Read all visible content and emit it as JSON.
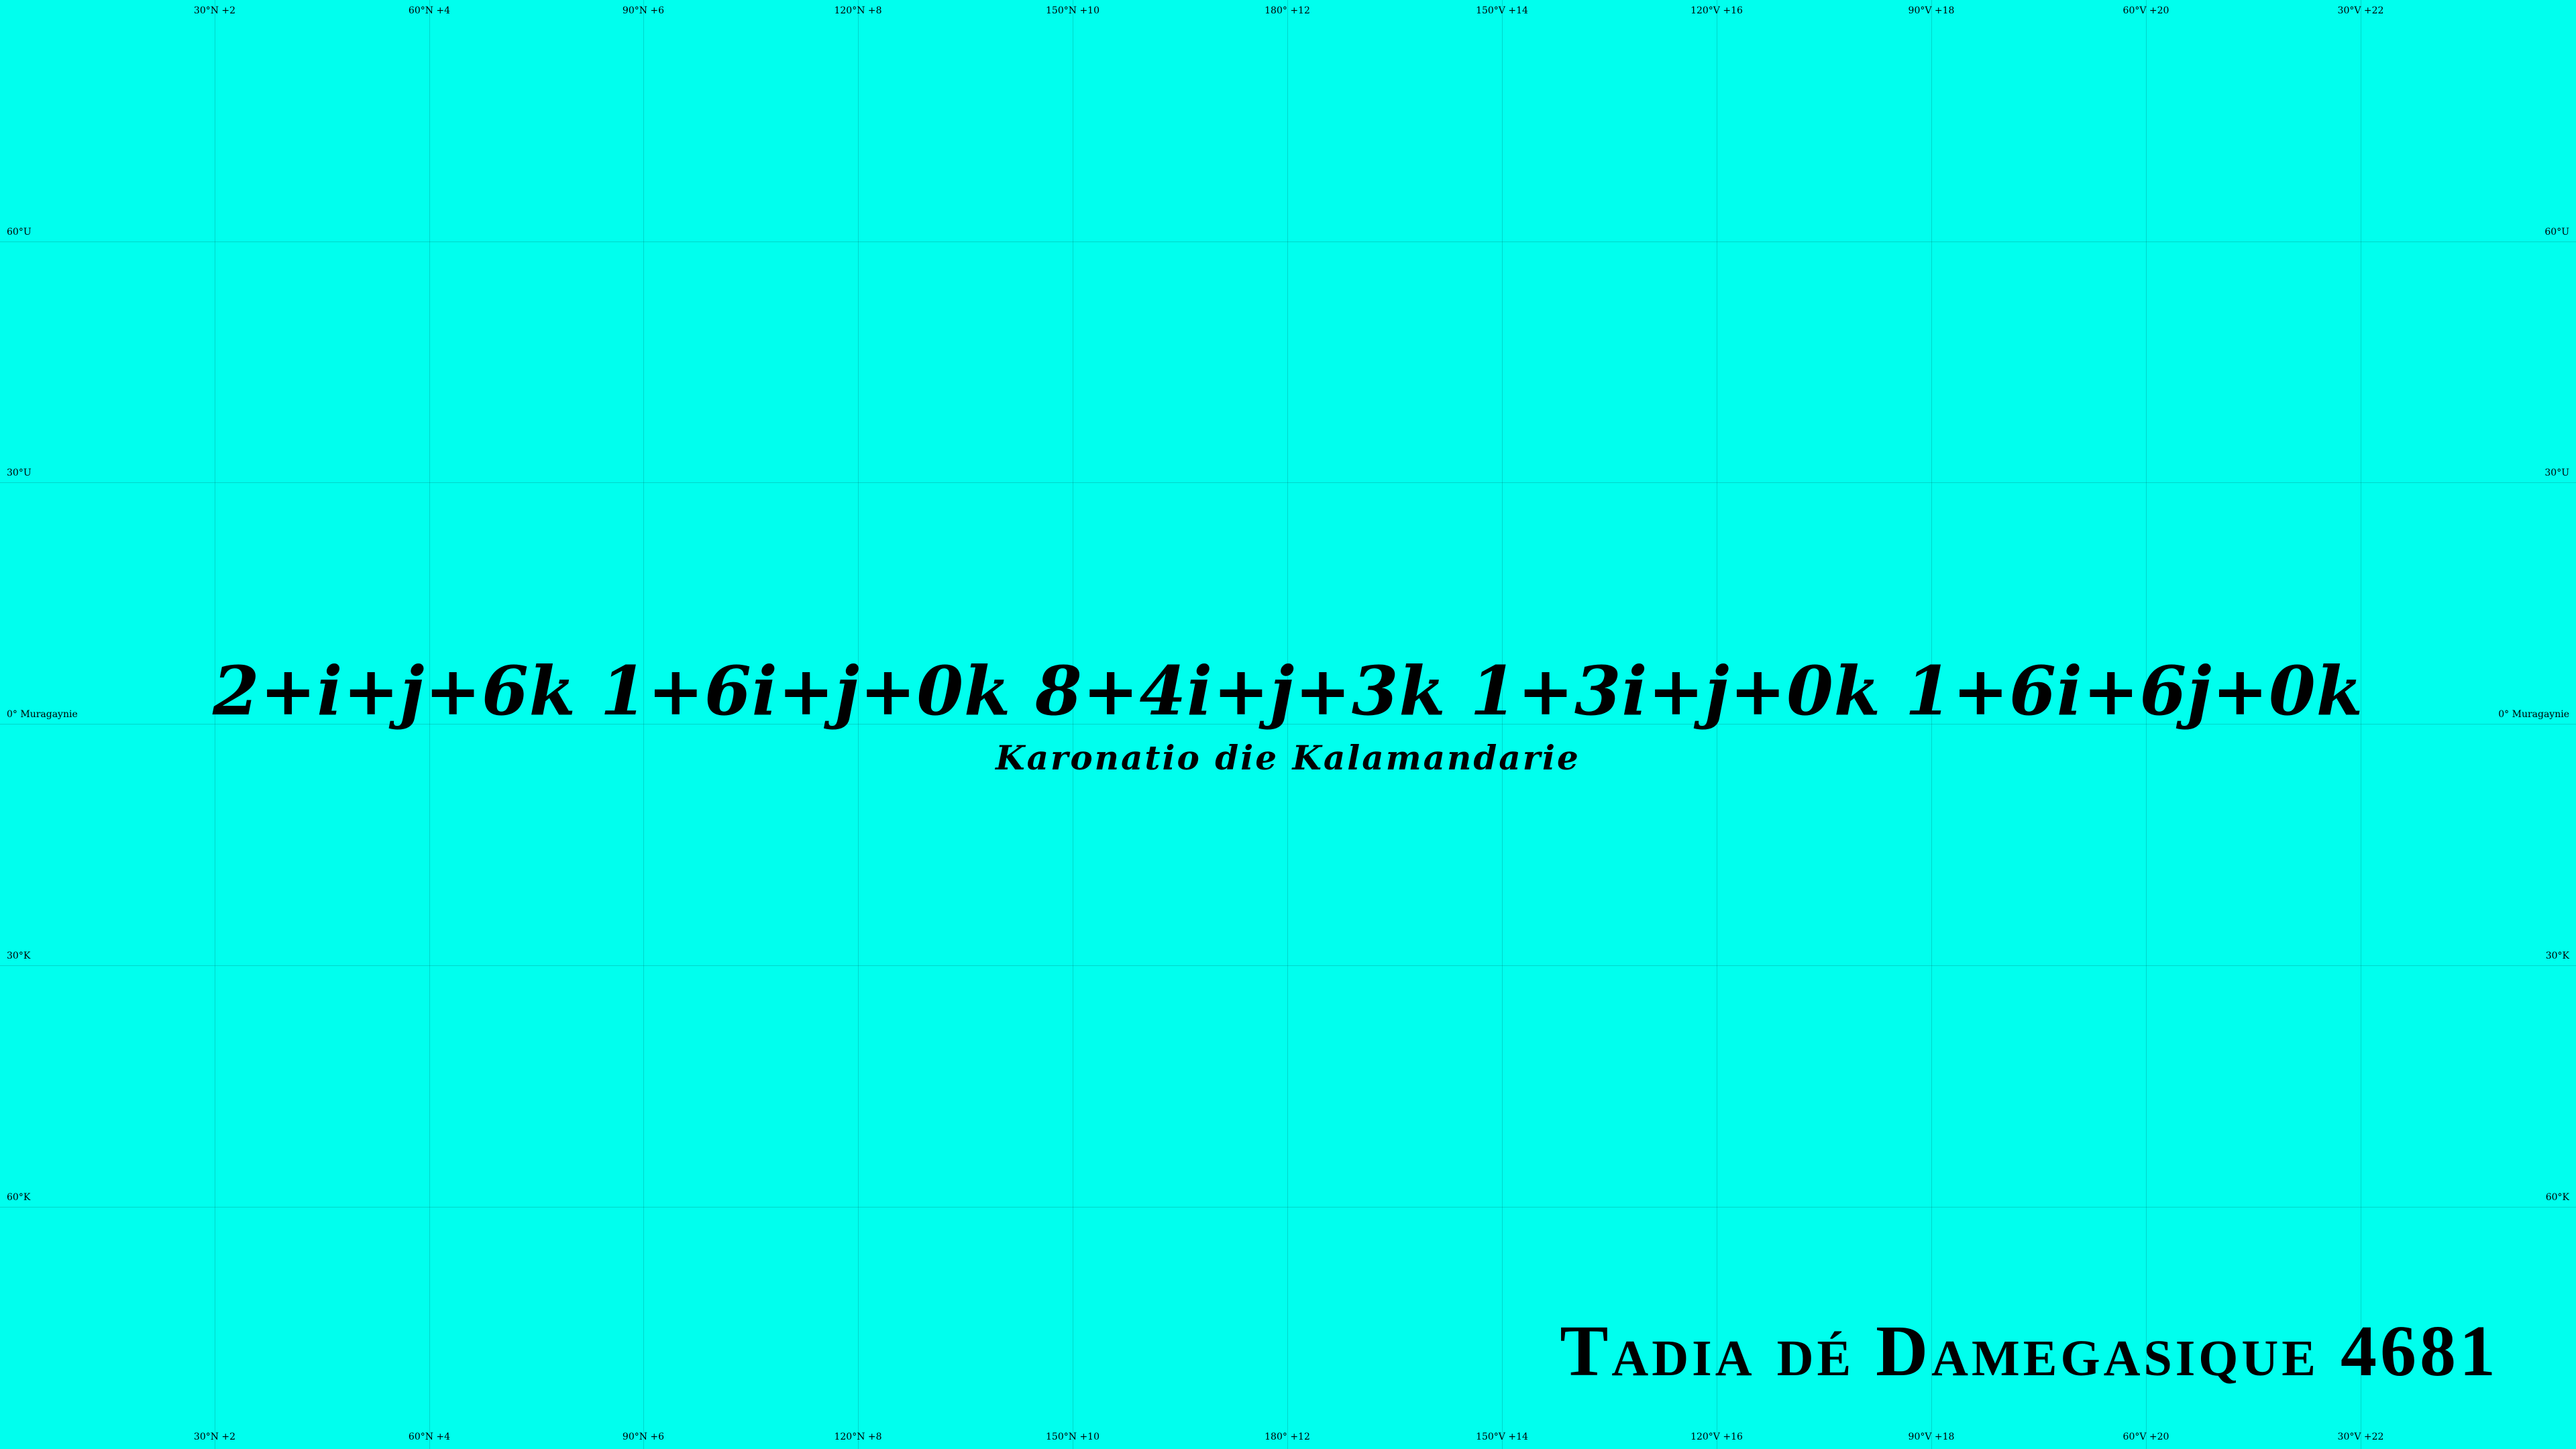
{
  "map": {
    "background_color": "#00ffee",
    "gridline_color": "#4fb5b2",
    "formula": "2+i+j+6k 1+6i+j+0k 8+4i+j+3k 1+3i+j+0k 1+6i+6j+0k",
    "subtitle": "Karonatio die Kalamandarie",
    "title": "Tadia dé Damegasique 4681",
    "meridian_labels": [
      "30°N +2",
      "60°N +4",
      "90°N +6",
      "120°N +8",
      "150°N +10",
      "180° +12",
      "150°V +14",
      "120°V +16",
      "90°V +18",
      "60°V +20",
      "30°V +22"
    ],
    "parallel_labels": [
      "60°U",
      "30°U",
      "0° Muragaynie",
      "30°K",
      "60°K"
    ]
  }
}
